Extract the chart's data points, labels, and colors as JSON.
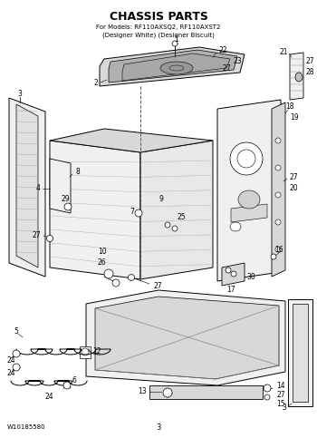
{
  "title": "CHASSIS PARTS",
  "subtitle_line1": "For Models: RF110AXSQ2, RF110AXST2",
  "subtitle_line2": "(Designer White) (Designer Biscuit)",
  "bg_color": "#ffffff",
  "line_color": "#000000",
  "footer_left": "W10185580",
  "footer_center": "3",
  "gray1": "#c8c8c8",
  "gray2": "#e0e0e0",
  "gray3": "#f0f0f0",
  "gray4": "#b0b0b0",
  "gray5": "#d8d8d8"
}
